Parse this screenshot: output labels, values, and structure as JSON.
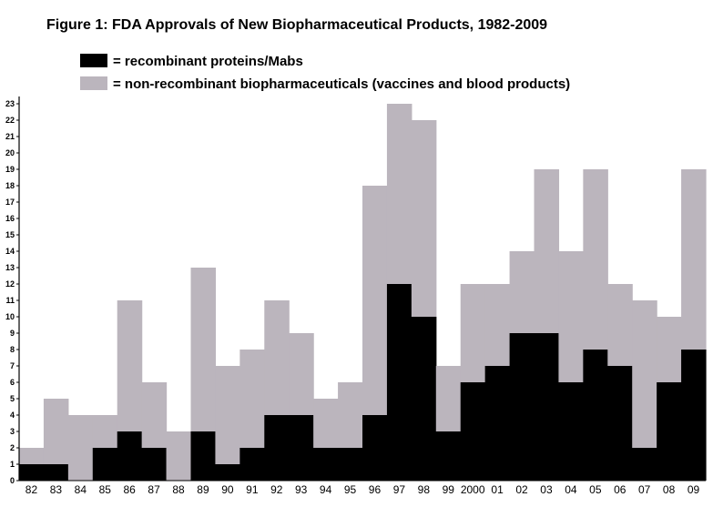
{
  "chart_data": {
    "type": "bar",
    "stacked": true,
    "title": "Figure 1:  FDA Approvals of New Biopharmaceutical Products, 1982-2009",
    "xlabel": "",
    "ylabel": "",
    "ylim": [
      0,
      23
    ],
    "grid": false,
    "legend_position": "top-left",
    "categories": [
      "82",
      "83",
      "84",
      "85",
      "86",
      "87",
      "88",
      "89",
      "90",
      "91",
      "92",
      "93",
      "94",
      "95",
      "96",
      "97",
      "98",
      "99",
      "2000",
      "01",
      "02",
      "03",
      "04",
      "05",
      "06",
      "07",
      "08",
      "09"
    ],
    "yticks": [
      "0",
      "1",
      "2",
      "3",
      "4",
      "5",
      "6",
      "7",
      "8",
      "9",
      "10",
      "11",
      "12",
      "13",
      "14",
      "15",
      "16",
      "17",
      "18",
      "19",
      "20",
      "21",
      "22",
      "23"
    ],
    "series": [
      {
        "name": "= recombinant proteins/Mabs",
        "color": "#000000",
        "values": [
          1,
          1,
          0,
          2,
          3,
          2,
          0,
          3,
          1,
          2,
          4,
          4,
          2,
          2,
          4,
          12,
          10,
          3,
          6,
          7,
          9,
          9,
          6,
          8,
          7,
          2,
          6,
          8
        ]
      },
      {
        "name": "= non-recombinant biopharmaceuticals (vaccines and blood products)",
        "color": "#bbb5bd",
        "values": [
          1,
          4,
          4,
          2,
          8,
          4,
          3,
          10,
          6,
          6,
          7,
          5,
          3,
          4,
          14,
          11,
          12,
          4,
          6,
          5,
          5,
          10,
          8,
          11,
          5,
          9,
          4,
          11
        ]
      }
    ]
  }
}
